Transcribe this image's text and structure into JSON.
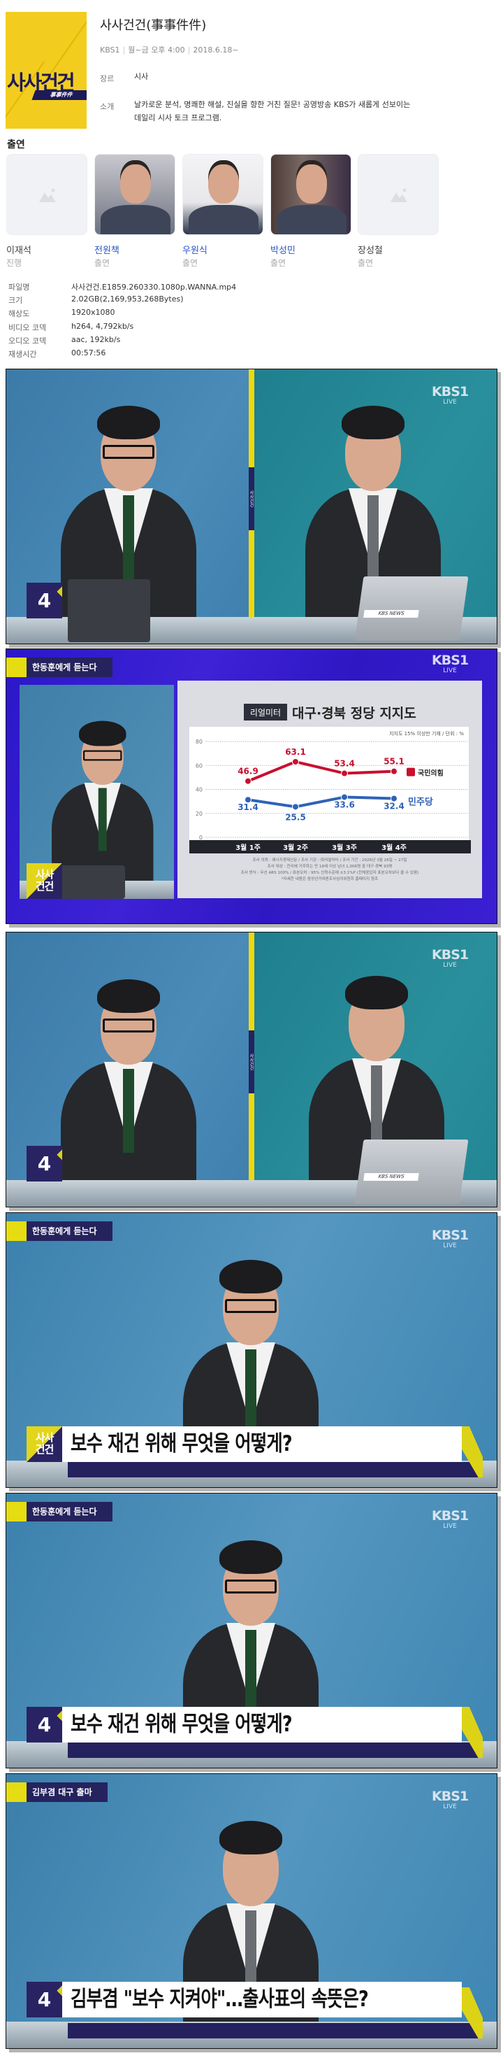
{
  "program": {
    "cover_logo_text": "사사건건",
    "cover_logo_sub": "事事件件",
    "cover_color": "#f2cd1f",
    "title": "사사건건(事事件件)",
    "channel": "KBS1",
    "schedule": "월~금 오후 4:00",
    "start_date": "2018.6.18~",
    "genre_label": "장르",
    "genre": "시사",
    "intro_label": "소개",
    "intro": "날카로운 분석, 명쾌한 해설, 진실을 향한 거친 질문! 공영방송 KBS가 새롭게 선보이는 데일리 시사 토크 프로그램."
  },
  "cast": {
    "heading": "출연",
    "members": [
      {
        "name": "이재석",
        "role": "진행",
        "photo": "placeholder-image-icon",
        "link": false
      },
      {
        "name": "전원책",
        "role": "출연",
        "photo": "photo",
        "link": true
      },
      {
        "name": "우원식",
        "role": "출연",
        "photo": "photo",
        "link": true
      },
      {
        "name": "박성민",
        "role": "출연",
        "photo": "photo",
        "link": true
      },
      {
        "name": "장성철",
        "role": "출연",
        "photo": "placeholder-image-icon",
        "link": false
      }
    ]
  },
  "file_info": [
    {
      "label": "파일명",
      "value": "사사건건.E1859.260330.1080p.WANNA.mp4"
    },
    {
      "label": "크기",
      "value": "2.02GB(2,169,953,268Bytes)"
    },
    {
      "label": "해상도",
      "value": "1920x1080"
    },
    {
      "label": "비디오 코덱",
      "value": "h264, 4,792kb/s"
    },
    {
      "label": "오디오 코덱",
      "value": "aac, 192kb/s"
    },
    {
      "label": "재생시간",
      "value": "00:57:56"
    }
  ],
  "screens": {
    "kbs_logo": "KBS1",
    "kbs_live": "LIVE",
    "badge_number": "4",
    "show_logo_line1": "사사",
    "show_logo_line2": "건건",
    "side_label": "사사건건",
    "laptop_label": "KBS NEWS",
    "frame2_tag": "한동훈에게 듣는다",
    "frame4_tag": "한동훈에게 듣는다",
    "frame4_caption": "보수 재건 위해 무엇을 어떻게?",
    "frame5_tag": "한동훈에게 듣는다",
    "frame5_caption": "보수 재건 위해 무엇을 어떻게?",
    "frame6_tag": "김부겸 대구 출마",
    "frame6_caption": "김부겸 \"보수 지켜야\"…출사표의 속뜻은?"
  },
  "chart_data": {
    "type": "line",
    "source_badge": "리얼미터",
    "title": "대구·경북 정당 지지도",
    "note": "지지도 15% 이상만 기재 / 단위 : %",
    "categories": [
      "3월 1주",
      "3월 2주",
      "3월 3주",
      "3월 4주"
    ],
    "yticks": [
      0,
      20,
      40,
      60,
      80
    ],
    "ylim": [
      0,
      80
    ],
    "grid": true,
    "legend": "right",
    "series": [
      {
        "name": "국민의힘",
        "values": [
          46.9,
          63.1,
          53.4,
          55.1
        ],
        "color": "#c8102e"
      },
      {
        "name": "민주당",
        "values": [
          31.4,
          25.5,
          33.6,
          32.4
        ],
        "color": "#2f62b8"
      }
    ],
    "footnotes": [
      "조사 의뢰 : 에너지경제신문 / 조사 기관 : ㈜리얼미터 / 조사 기간 : 2026년 3월 26일 ~ 27일",
      "조사 대상 : 전국에 거주하는 만 18세 이상 남녀 1,006명 중 대구·경북 93명",
      "조사 방식 : 무선 ARS 100% / 표본오차 : 95% 신뢰수준에 ±3.1%P (전체응답자 표본오차보다 클 수 있음)",
      "*자세한 내용은 중앙선거여론조사심의위원회 홈페이지 참조"
    ]
  }
}
